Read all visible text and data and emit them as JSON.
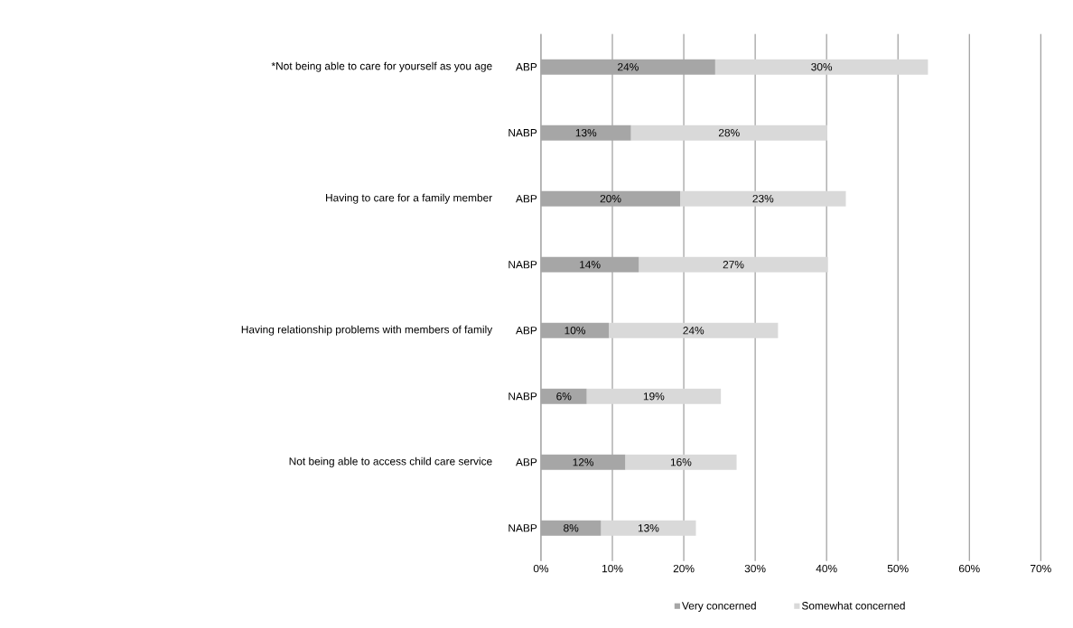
{
  "chart_data": {
    "type": "bar",
    "orientation": "horizontal",
    "stacked": true,
    "categories": [
      "ABP",
      "NABP",
      "ABP",
      "NABP",
      "ABP",
      "NABP",
      "ABP",
      "NABP"
    ],
    "annotations": [
      "*Not being able to care for yourself as you age",
      "Having to care for a family member",
      "Having relationship problems with members of family",
      "Not being able to access child care service"
    ],
    "series": [
      {
        "name": "Very concerned",
        "color": "#a6a6a6",
        "values": [
          24.4,
          12.6,
          19.5,
          13.7,
          9.5,
          6.4,
          11.8,
          8.4
        ],
        "value_labels": [
          "24%",
          "13%",
          "20%",
          "14%",
          "10%",
          "6%",
          "12%",
          "8%"
        ]
      },
      {
        "name": "Somewhat concerned",
        "color": "#d9d9d9",
        "values": [
          29.8,
          27.5,
          23.2,
          26.5,
          23.7,
          18.8,
          15.6,
          13.3
        ],
        "value_labels": [
          "30%",
          "28%",
          "23%",
          "27%",
          "24%",
          "19%",
          "16%",
          "13%"
        ]
      }
    ],
    "xlim": [
      0,
      70
    ],
    "xticks": [
      {
        "value": 0,
        "label": "0%"
      },
      {
        "value": 10,
        "label": "10%"
      },
      {
        "value": 20,
        "label": "20%"
      },
      {
        "value": 30,
        "label": "30%"
      },
      {
        "value": 40,
        "label": "40%"
      },
      {
        "value": 50,
        "label": "50%"
      },
      {
        "value": 60,
        "label": "60%"
      },
      {
        "value": 70,
        "label": "70%"
      }
    ],
    "grid": "x",
    "legend": "bottom"
  }
}
